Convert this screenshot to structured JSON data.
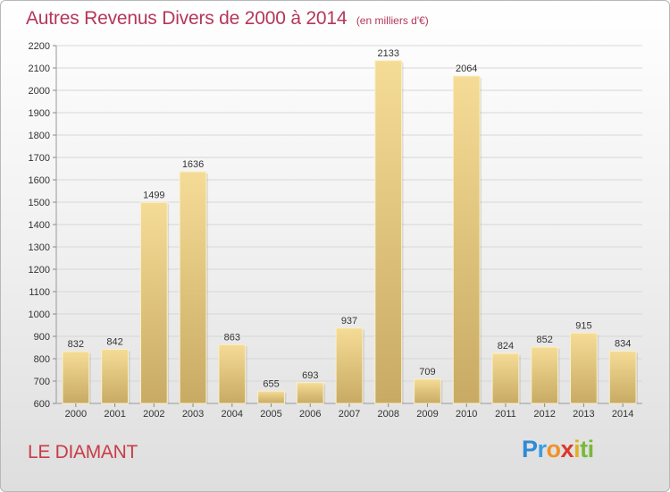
{
  "header": {
    "title": "Autres Revenus Divers de 2000 à 2014",
    "unit": "(en milliers d'€)"
  },
  "footer": {
    "city": "LE DIAMANT",
    "logo_letters": [
      "P",
      "r",
      "o",
      "x",
      "i",
      "ti"
    ]
  },
  "colors": {
    "title": "#b4375a",
    "bar_top": "#f5dc96",
    "bar_bottom": "#c8aa64",
    "grid": "#d7d7d7"
  },
  "chart_data": {
    "type": "bar",
    "title": "Autres Revenus Divers de 2000 à 2014",
    "xlabel": "",
    "ylabel": "",
    "categories": [
      "2000",
      "2001",
      "2002",
      "2003",
      "2004",
      "2005",
      "2006",
      "2007",
      "2008",
      "2009",
      "2010",
      "2011",
      "2012",
      "2013",
      "2014"
    ],
    "values": [
      832,
      842,
      1499,
      1636,
      863,
      655,
      693,
      937,
      2133,
      709,
      2064,
      824,
      852,
      915,
      834
    ],
    "ylim": [
      600,
      2200
    ],
    "yticks": [
      600,
      700,
      800,
      900,
      1000,
      1100,
      1200,
      1300,
      1400,
      1500,
      1600,
      1700,
      1800,
      1900,
      2000,
      2100,
      2200
    ],
    "grid": true,
    "data_labels": true
  }
}
